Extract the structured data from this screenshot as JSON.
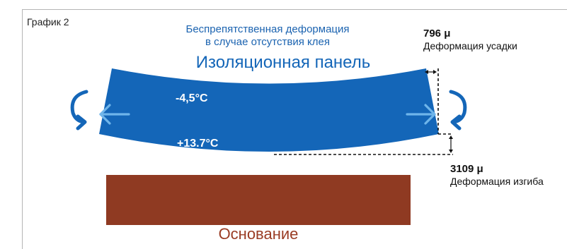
{
  "figure_label": "График 2",
  "note": {
    "line1": "Беспрепятственная деформация",
    "line2": "в случае отсутствия клея"
  },
  "panel": {
    "title": "Изоляционная панель",
    "temp_top": "-4,5°C",
    "temp_bottom": "+13.7°C",
    "color": "#1466b8"
  },
  "shrinkage": {
    "value": "796 μ",
    "caption": "Деформация усадки"
  },
  "bending": {
    "value": "3109 μ",
    "caption": "Деформация изгиба"
  },
  "substrate": {
    "label": "Основание",
    "color": "#8f3a22"
  },
  "colors": {
    "arrow_light": "#6fb5ea",
    "arrow_dark": "#1466b8"
  }
}
